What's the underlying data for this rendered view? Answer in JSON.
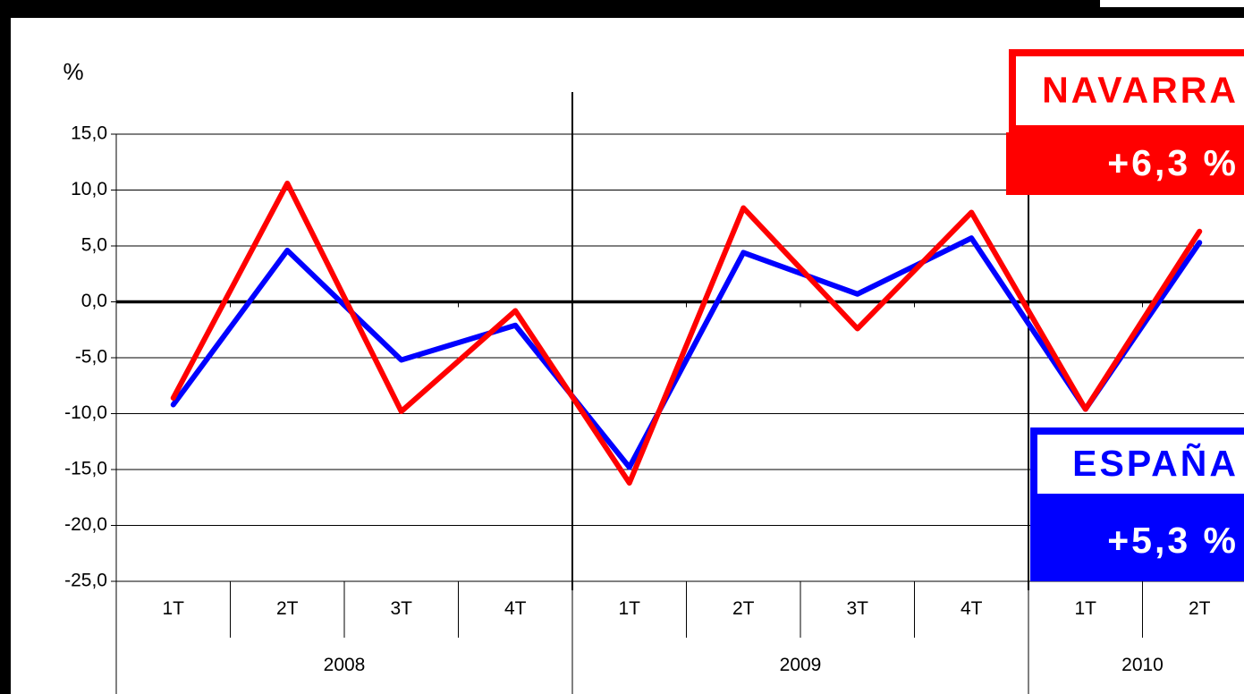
{
  "chart_data": {
    "type": "line",
    "y_label": "%",
    "categories": [
      "1T",
      "2T",
      "3T",
      "4T",
      "1T",
      "2T",
      "3T",
      "4T",
      "1T",
      "2T"
    ],
    "x_groups": [
      {
        "name": "2008",
        "count": 4
      },
      {
        "name": "2009",
        "count": 4
      },
      {
        "name": "2010",
        "count": 2
      }
    ],
    "series": [
      {
        "name": "ESPAÑA",
        "color": "#0000ff",
        "values": [
          -9.2,
          4.6,
          -5.2,
          -2.1,
          -14.8,
          4.4,
          0.7,
          5.7,
          -9.6,
          5.3
        ]
      },
      {
        "name": "NAVARRA",
        "color": "#ff0000",
        "values": [
          -8.6,
          10.6,
          -9.8,
          -0.8,
          -16.2,
          8.4,
          -2.4,
          8.0,
          -9.6,
          6.3
        ]
      }
    ],
    "annotations": [
      {
        "series": "NAVARRA",
        "label": "+6,3 %"
      },
      {
        "series": "ESPAÑA",
        "label": "+5,3 %"
      }
    ],
    "ylim": [
      -25,
      15
    ],
    "yticks": [
      {
        "value": -25,
        "label": "-25,0"
      },
      {
        "value": -20,
        "label": "-20,0"
      },
      {
        "value": -15,
        "label": "-15,0"
      },
      {
        "value": -10,
        "label": "-10,0"
      },
      {
        "value": -5,
        "label": "-5,0"
      },
      {
        "value": 0,
        "label": "0,0"
      },
      {
        "value": 5,
        "label": "5,0"
      },
      {
        "value": 10,
        "label": "10,0"
      },
      {
        "value": 15,
        "label": "15,0"
      }
    ],
    "grid": true
  }
}
